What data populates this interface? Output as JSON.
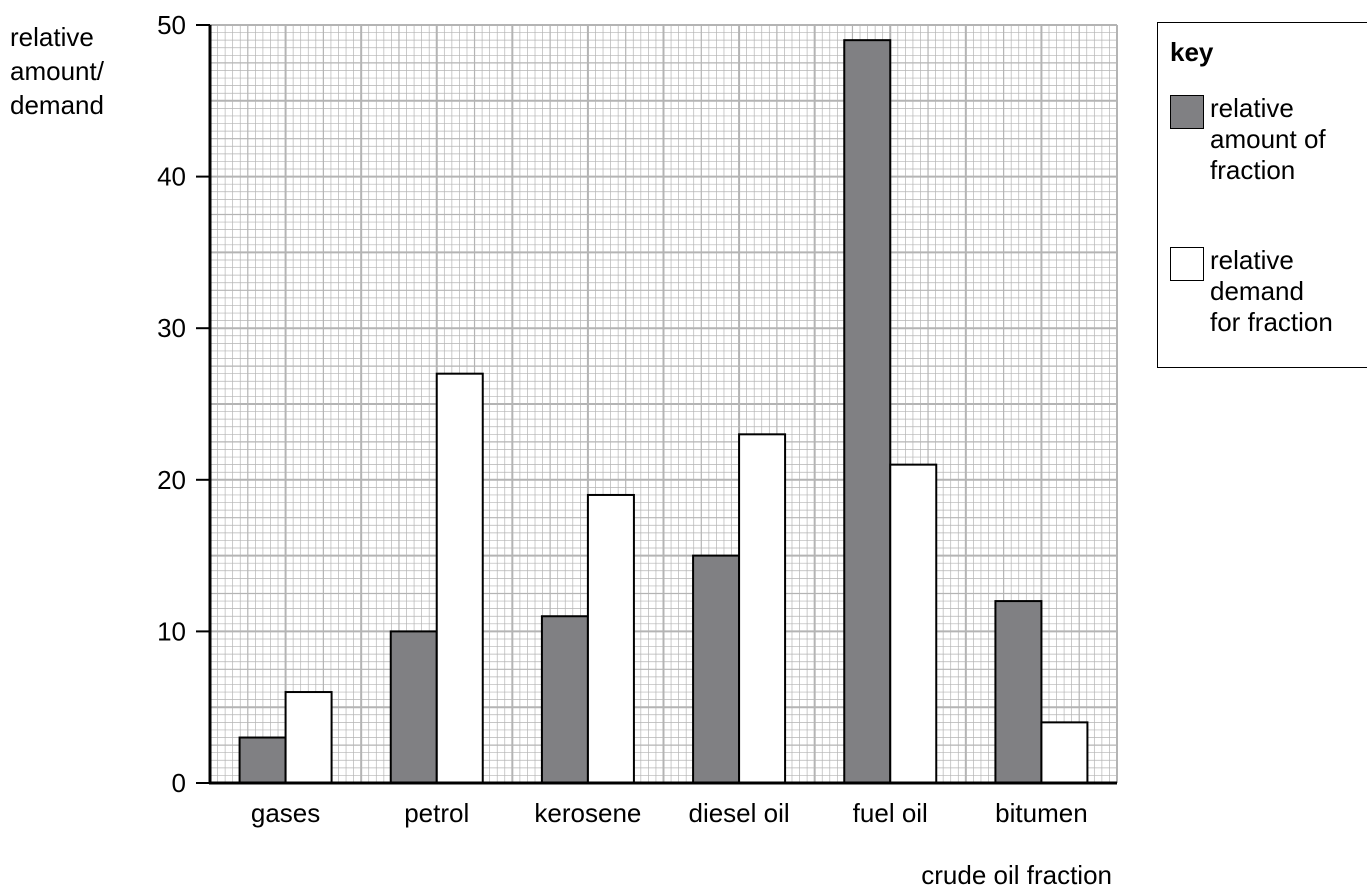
{
  "chart_data": {
    "type": "bar",
    "title": "",
    "ylabel_lines": [
      "relative",
      "amount/",
      "demand"
    ],
    "xlabel": "crude oil fraction",
    "categories": [
      "gases",
      "petrol",
      "kerosene",
      "diesel oil",
      "fuel oil",
      "bitumen"
    ],
    "ylim": [
      0,
      50
    ],
    "yticks": [
      0,
      10,
      20,
      30,
      40,
      50
    ],
    "grid": true,
    "legend_placement": "top-right",
    "legend_title": "key",
    "series": [
      {
        "name": "relative amount of fraction",
        "legend_text": "relative\namount of\nfraction",
        "color": "#808083",
        "values": [
          3,
          10,
          11,
          15,
          49,
          12
        ]
      },
      {
        "name": "relative demand for fraction",
        "legend_text": "relative\ndemand\nfor fraction",
        "color": "#ffffff",
        "values": [
          6,
          27,
          19,
          23,
          21,
          4
        ]
      }
    ]
  }
}
